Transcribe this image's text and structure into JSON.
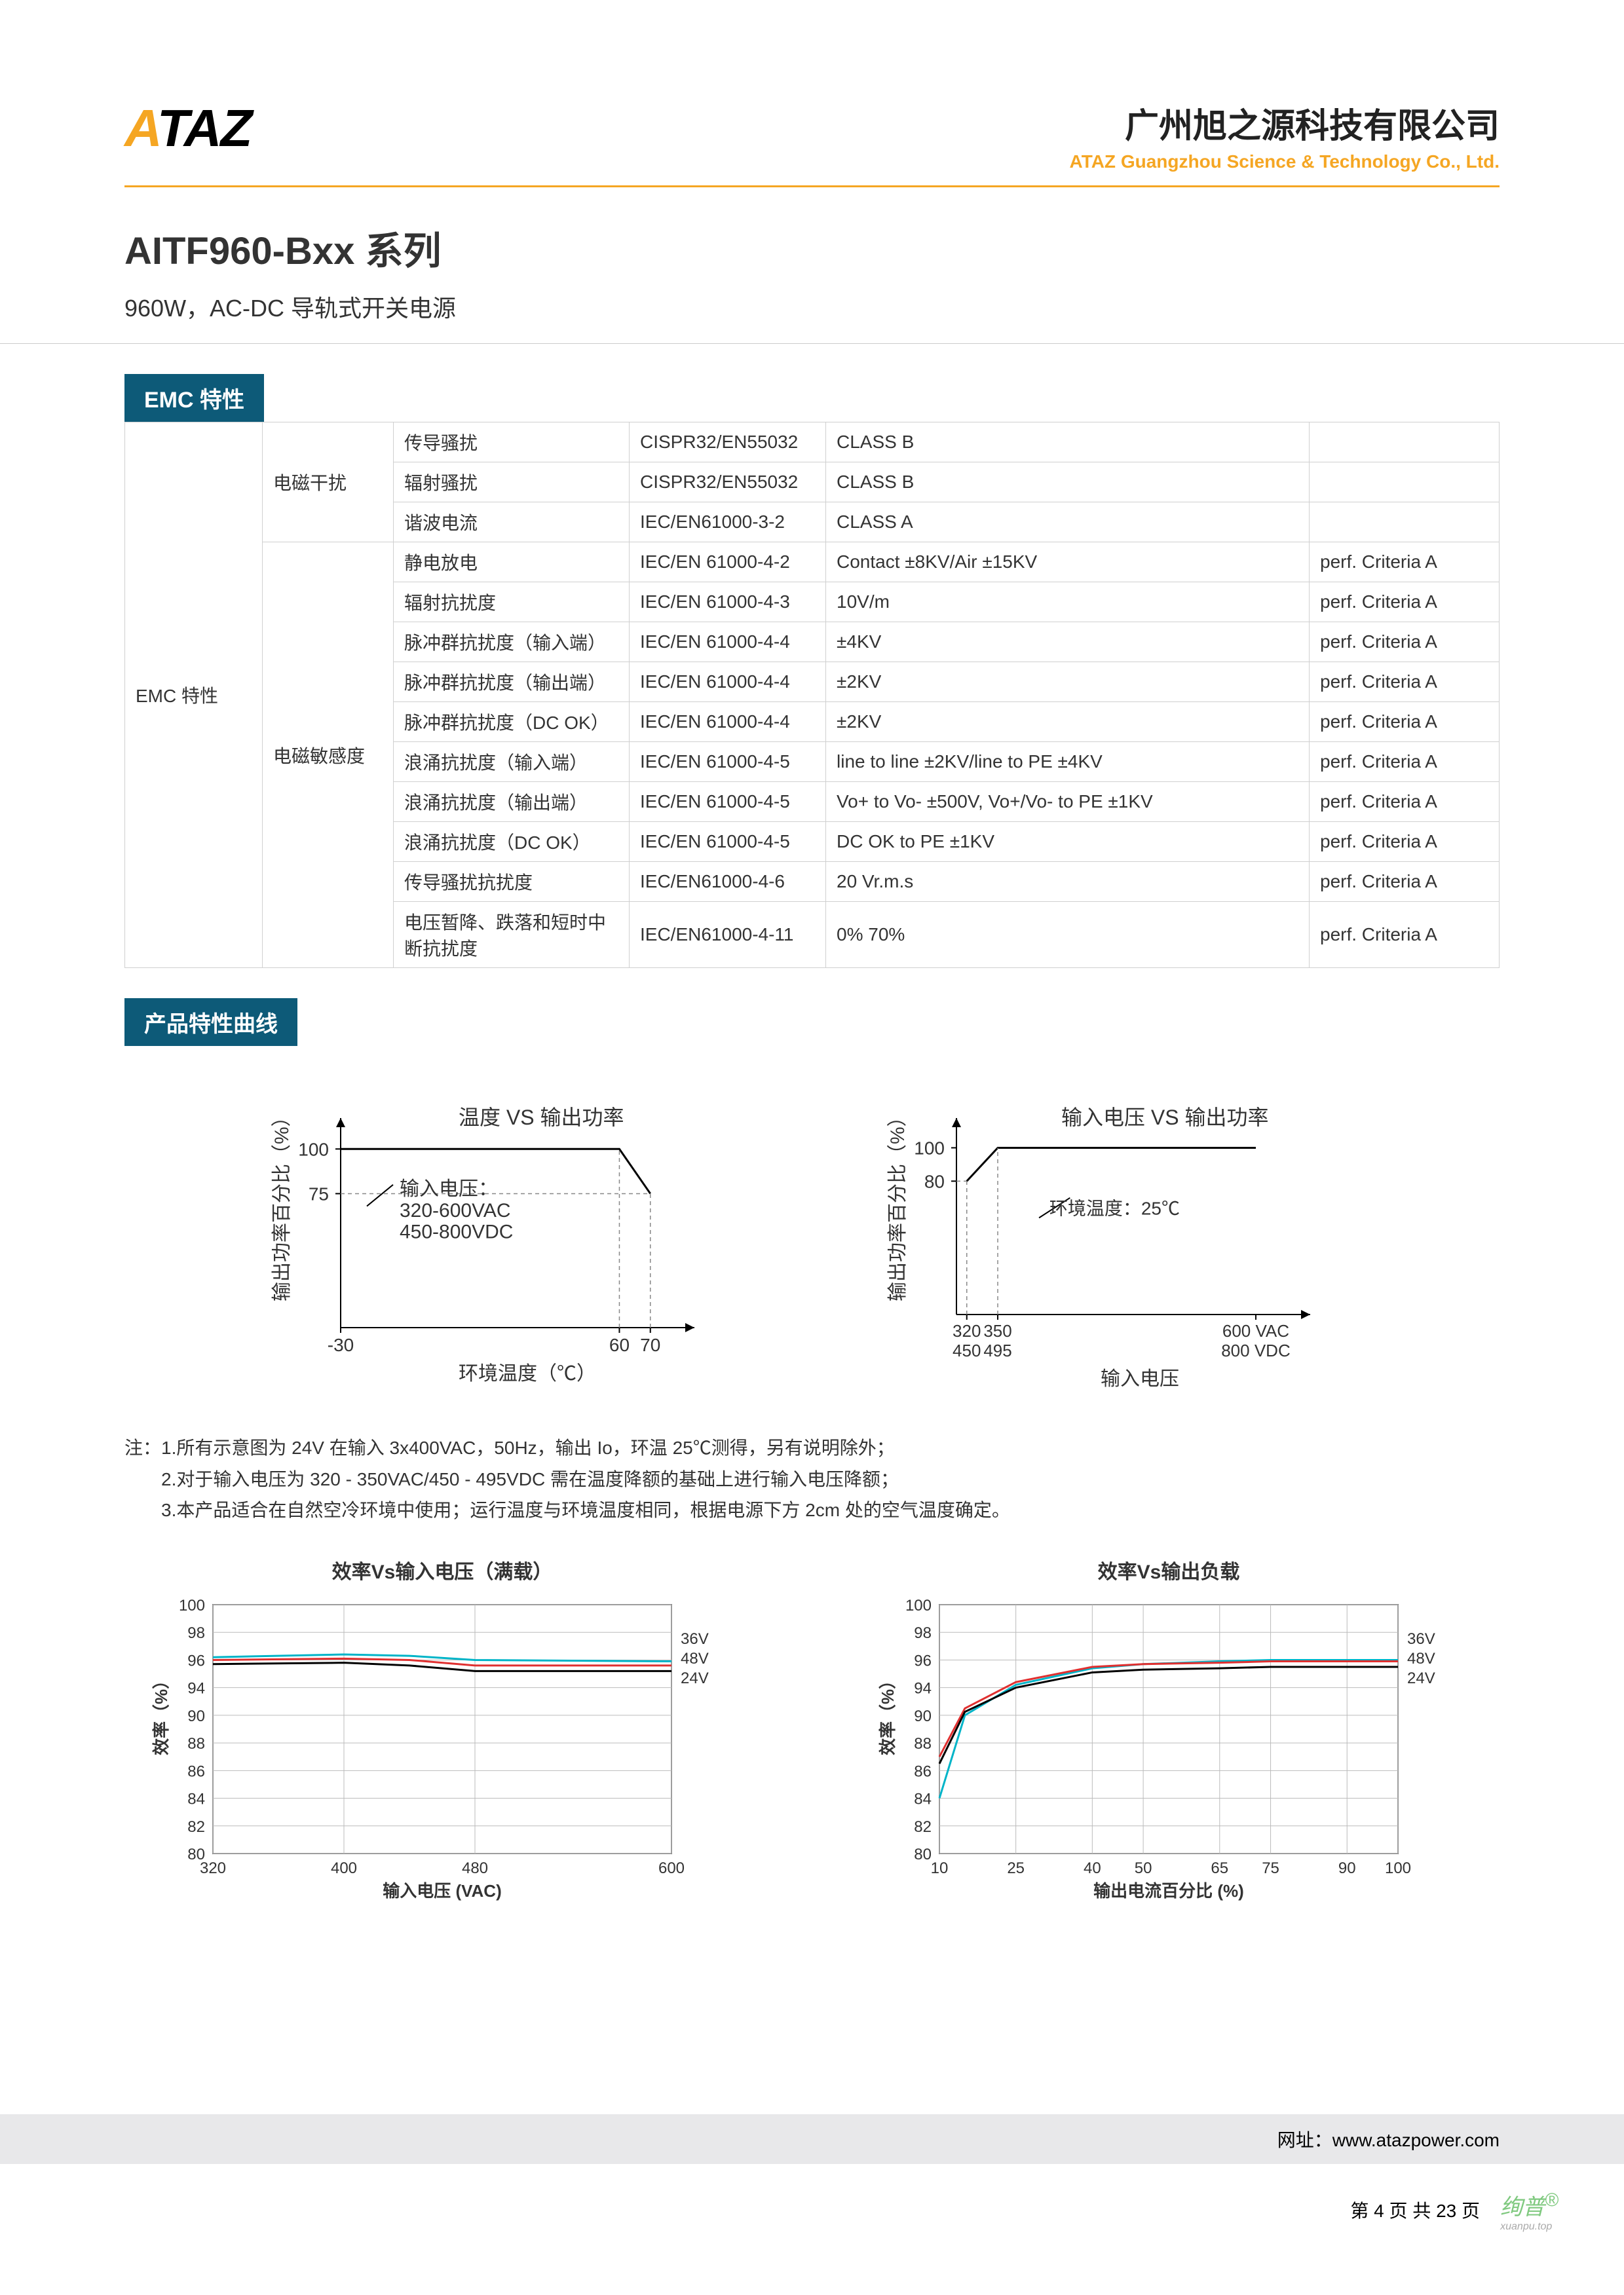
{
  "header": {
    "logo_text": "ATAZ",
    "company_cn": "广州旭之源科技有限公司",
    "company_en": "ATAZ Guangzhou Science & Technology Co., Ltd."
  },
  "product": {
    "title": "AITF960-Bxx 系列",
    "subtitle": "960W，AC-DC 导轨式开关电源"
  },
  "section_emc_title": "EMC 特性",
  "emc_table": {
    "row_label": "EMC 特性",
    "group1_label": "电磁干扰",
    "group2_label": "电磁敏感度",
    "g1_rows": [
      {
        "item": "传导骚扰",
        "std": "CISPR32/EN55032",
        "val": "CLASS B",
        "crit": ""
      },
      {
        "item": "辐射骚扰",
        "std": "CISPR32/EN55032",
        "val": "CLASS B",
        "crit": ""
      },
      {
        "item": "谐波电流",
        "std": "IEC/EN61000-3-2",
        "val": "CLASS A",
        "crit": ""
      }
    ],
    "g2_rows": [
      {
        "item": "静电放电",
        "std": "IEC/EN 61000-4-2",
        "val": "Contact ±8KV/Air ±15KV",
        "crit": "perf. Criteria A"
      },
      {
        "item": "辐射抗扰度",
        "std": "IEC/EN 61000-4-3",
        "val": "10V/m",
        "crit": "perf. Criteria A"
      },
      {
        "item": "脉冲群抗扰度（输入端）",
        "std": "IEC/EN 61000-4-4",
        "val": "±4KV",
        "crit": "perf. Criteria A"
      },
      {
        "item": "脉冲群抗扰度（输出端）",
        "std": "IEC/EN 61000-4-4",
        "val": "±2KV",
        "crit": "perf. Criteria A"
      },
      {
        "item": "脉冲群抗扰度（DC OK）",
        "std": "IEC/EN 61000-4-4",
        "val": "±2KV",
        "crit": "perf. Criteria A"
      },
      {
        "item": "浪涌抗扰度（输入端）",
        "std": "IEC/EN 61000-4-5",
        "val": "line to line ±2KV/line to PE ±4KV",
        "crit": "perf. Criteria A"
      },
      {
        "item": "浪涌抗扰度（输出端）",
        "std": "IEC/EN 61000-4-5",
        "val": "Vo+ to Vo- ±500V, Vo+/Vo- to PE ±1KV",
        "crit": "perf. Criteria A"
      },
      {
        "item": "浪涌抗扰度（DC OK）",
        "std": "IEC/EN 61000-4-5",
        "val": "DC OK to PE ±1KV",
        "crit": "perf. Criteria A"
      },
      {
        "item": "传导骚扰抗扰度",
        "std": "IEC/EN61000-4-6",
        "val": "20 Vr.m.s",
        "crit": "perf. Criteria A"
      },
      {
        "item": "电压暂降、跌落和短时中断抗扰度",
        "std": "IEC/EN61000-4-11",
        "val": "0% 70%",
        "crit": "perf. Criteria A"
      }
    ]
  },
  "section_curve_title": "产品特性曲线",
  "chart_temp": {
    "type": "line",
    "title": "温度 VS 输出功率",
    "ylabel": "输出功率百分比（%）",
    "xlabel": "环境温度（℃）",
    "yticks": [
      "75",
      "100"
    ],
    "xticks": [
      "-30",
      "60",
      "70"
    ],
    "inner_text1": "输入电压：",
    "inner_text2": "320-600VAC",
    "inner_text3": "450-800VDC",
    "line_color": "#000000",
    "points": [
      [
        -30,
        100
      ],
      [
        60,
        100
      ],
      [
        70,
        75
      ]
    ],
    "xlim": [
      -30,
      80
    ],
    "ylim": [
      0,
      110
    ]
  },
  "chart_vin": {
    "type": "line",
    "title": "输入电压 VS 输出功率",
    "ylabel": "输出功率百分比（%）",
    "xlabel": "输入电压",
    "yticks": [
      "80",
      "100"
    ],
    "xticks_top": [
      "320",
      "350",
      "600 VAC"
    ],
    "xticks_bot": [
      "450",
      "495",
      "800 VDC"
    ],
    "inner_text1": "环境温度：25℃",
    "line_color": "#000000",
    "points": [
      [
        320,
        80
      ],
      [
        350,
        100
      ],
      [
        600,
        100
      ]
    ],
    "xlim": [
      310,
      640
    ],
    "ylim": [
      0,
      110
    ]
  },
  "notes": {
    "prefix": "注：",
    "n1": "1.所有示意图为 24V 在输入 3x400VAC，50Hz，输出 Io，环温 25℃测得，另有说明除外；",
    "n2": "2.对于输入电压为 320 - 350VAC/450 - 495VDC 需在温度降额的基础上进行输入电压降额；",
    "n3": "3.本产品适合在自然空冷环境中使用；运行温度与环境温度相同，根据电源下方 2cm 处的空气温度确定。"
  },
  "chart_eff_vin": {
    "type": "line",
    "title": "效率Vs输入电压（满载）",
    "ylabel": "效率（%）",
    "xlabel": "输入电压 (VAC)",
    "xticks": [
      "320",
      "400",
      "480",
      "600"
    ],
    "yticks": [
      "80",
      "82",
      "84",
      "86",
      "88",
      "90",
      "94",
      "96",
      "98",
      "100"
    ],
    "legend": [
      {
        "label": "36V",
        "color": "#00b4c8"
      },
      {
        "label": "48V",
        "color": "#e03030"
      },
      {
        "label": "24V",
        "color": "#000000"
      }
    ],
    "grid_color": "#bbbbbb",
    "series": {
      "36V": [
        [
          320,
          96.2
        ],
        [
          400,
          96.4
        ],
        [
          440,
          96.3
        ],
        [
          480,
          96.0
        ],
        [
          600,
          95.9
        ]
      ],
      "48V": [
        [
          320,
          96.0
        ],
        [
          400,
          96.1
        ],
        [
          440,
          96.0
        ],
        [
          480,
          95.6
        ],
        [
          600,
          95.6
        ]
      ],
      "24V": [
        [
          320,
          95.7
        ],
        [
          400,
          95.8
        ],
        [
          440,
          95.6
        ],
        [
          480,
          95.2
        ],
        [
          600,
          95.2
        ]
      ]
    },
    "xlim": [
      320,
      600
    ],
    "ylim": [
      80,
      100
    ]
  },
  "chart_eff_load": {
    "type": "line",
    "title": "效率Vs输出负载",
    "ylabel": "效率（%）",
    "xlabel": "输出电流百分比 (%)",
    "xticks": [
      "10",
      "25",
      "40",
      "50",
      "65",
      "75",
      "90",
      "100"
    ],
    "yticks": [
      "80",
      "82",
      "84",
      "86",
      "88",
      "90",
      "94",
      "96",
      "98",
      "100"
    ],
    "legend": [
      {
        "label": "36V",
        "color": "#00b4c8"
      },
      {
        "label": "48V",
        "color": "#e03030"
      },
      {
        "label": "24V",
        "color": "#000000"
      }
    ],
    "grid_color": "#bbbbbb",
    "series": {
      "36V": [
        [
          10,
          84
        ],
        [
          15,
          90
        ],
        [
          25,
          94.2
        ],
        [
          40,
          95.4
        ],
        [
          50,
          95.7
        ],
        [
          65,
          95.9
        ],
        [
          75,
          96.0
        ],
        [
          90,
          96.0
        ],
        [
          100,
          96.0
        ]
      ],
      "48V": [
        [
          10,
          87
        ],
        [
          15,
          91
        ],
        [
          25,
          94.4
        ],
        [
          40,
          95.5
        ],
        [
          50,
          95.7
        ],
        [
          65,
          95.8
        ],
        [
          75,
          95.9
        ],
        [
          90,
          95.9
        ],
        [
          100,
          95.9
        ]
      ],
      "24V": [
        [
          10,
          86.5
        ],
        [
          15,
          90.5
        ],
        [
          25,
          94.0
        ],
        [
          40,
          95.1
        ],
        [
          50,
          95.3
        ],
        [
          65,
          95.4
        ],
        [
          75,
          95.5
        ],
        [
          90,
          95.5
        ],
        [
          100,
          95.5
        ]
      ]
    },
    "xlim": [
      10,
      100
    ],
    "ylim": [
      80,
      100
    ]
  },
  "footer": {
    "url_label": "网址：",
    "url": "www.atazpower.com",
    "page": "第 4 页 共 23 页",
    "watermark": "绚普",
    "watermark_sub": "xuanpu.top"
  }
}
